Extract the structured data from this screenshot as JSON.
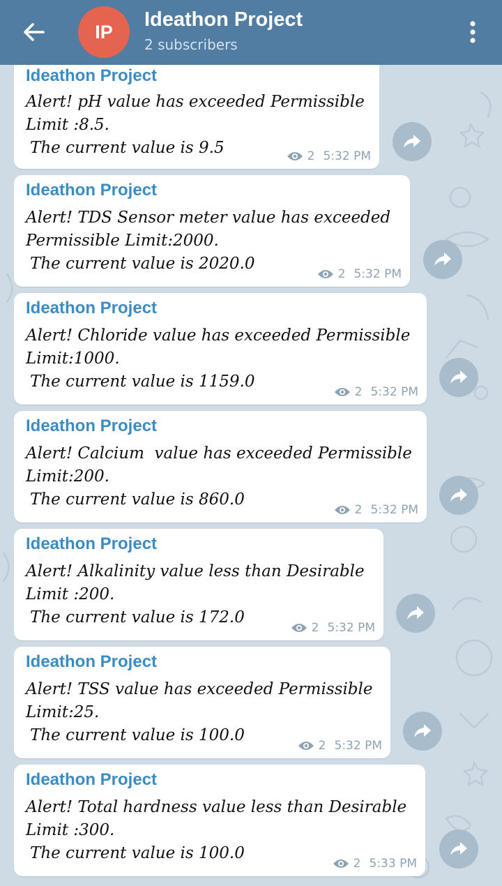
{
  "header": {
    "back_label": "back",
    "avatar_initials": "IP",
    "title": "Ideathon Project",
    "subtitle": "2 subscribers"
  },
  "messages": [
    {
      "sender": "Ideathon Project",
      "line1": "Alert! pH value has exceeded Permissible",
      "line2": "Limit :8.5.",
      "line3": "The current value is 9.5",
      "views": "2",
      "time": "5:32 PM"
    },
    {
      "sender": "Ideathon Project",
      "line1": "Alert! TDS Sensor meter value has exceeded",
      "line2": "Permissible Limit:2000.",
      "line3": "The current value is 2020.0",
      "views": "2",
      "time": "5:32 PM"
    },
    {
      "sender": "Ideathon Project",
      "line1": "Alert! Chloride value has exceeded Permissible",
      "line2": "Limit:1000.",
      "line3": "The current value is 1159.0",
      "views": "2",
      "time": "5:32 PM"
    },
    {
      "sender": "Ideathon Project",
      "line1": "Alert! Calcium  value has exceeded Permissible",
      "line2": "Limit:200.",
      "line3": "The current value is 860.0",
      "views": "2",
      "time": "5:32 PM"
    },
    {
      "sender": "Ideathon Project",
      "line1": "Alert! Alkalinity value less than Desirable",
      "line2": "Limit :200.",
      "line3": "The current value is 172.0",
      "views": "2",
      "time": "5:32 PM"
    },
    {
      "sender": "Ideathon Project",
      "line1": "Alert! TSS value has exceeded Permissible",
      "line2": "Limit:25.",
      "line3": "The current value is 100.0",
      "views": "2",
      "time": "5:32 PM"
    },
    {
      "sender": "Ideathon Project",
      "line1": "Alert! Total hardness value less than Desirable",
      "line2": "Limit :300.",
      "line3": "The current value is 100.0",
      "views": "2",
      "time": "5:33 PM"
    }
  ],
  "colors": {
    "header_bg": "#527da3",
    "chat_bg": "#cfdbe4",
    "avatar_bg": "#e4644f",
    "sender_name": "#3c8cc4",
    "share_button": "#a8bccc"
  }
}
